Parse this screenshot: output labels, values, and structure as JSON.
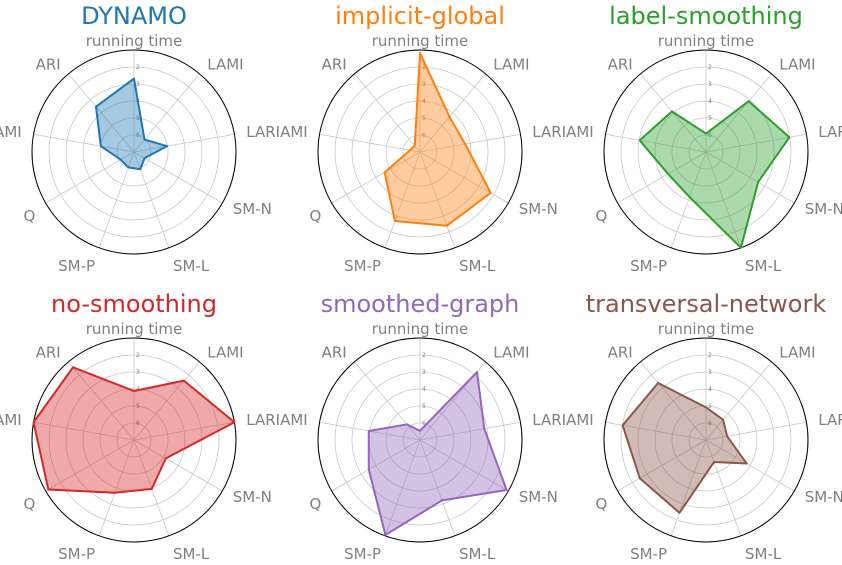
{
  "chart_data": {
    "type": "radar",
    "axes": [
      "running time",
      "LAMI",
      "LARI",
      "SM-N",
      "SM-L",
      "SM-P",
      "Q",
      "AMI",
      "ARI"
    ],
    "ring_labels": [
      "2",
      "3",
      "4",
      "5",
      "6"
    ],
    "grid": true,
    "panels": [
      {
        "title": "DYNAMO",
        "color": "#1f77b4",
        "values": [
          0.72,
          0.16,
          0.33,
          0.12,
          0.18,
          0.16,
          0.15,
          0.33,
          0.58
        ]
      },
      {
        "title": "implicit-global",
        "color": "#ff7f0e",
        "values": [
          0.97,
          0.45,
          0.45,
          0.8,
          0.77,
          0.72,
          0.4,
          0.1,
          0.08
        ]
      },
      {
        "title": "label-smoothing",
        "color": "#2ca02c",
        "values": [
          0.18,
          0.65,
          0.83,
          0.59,
          1.0,
          0.47,
          0.43,
          0.66,
          0.52
        ]
      },
      {
        "title": "no-smoothing",
        "color": "#d62728",
        "values": [
          0.48,
          0.76,
          1.0,
          0.36,
          0.51,
          0.55,
          0.97,
          1.0,
          0.93
        ]
      },
      {
        "title": "smoothed-graph",
        "color": "#9467bd",
        "values": [
          0.09,
          0.87,
          0.64,
          0.98,
          0.63,
          0.99,
          0.58,
          0.51,
          0.2
        ]
      },
      {
        "title": "transversal-network",
        "color": "#8c564b",
        "values": [
          0.32,
          0.26,
          0.21,
          0.46,
          0.23,
          0.76,
          0.75,
          0.83,
          0.73
        ]
      }
    ]
  }
}
